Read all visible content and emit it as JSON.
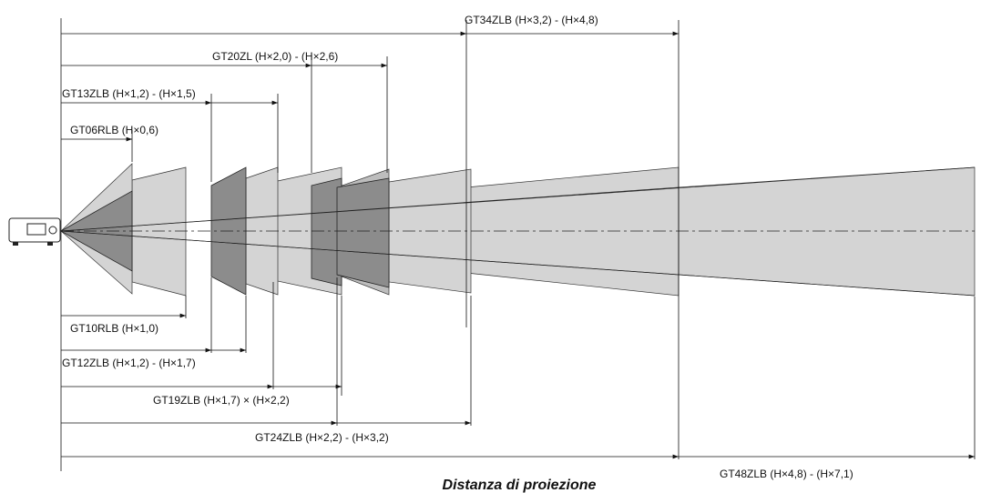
{
  "labels": [
    "GT34ZLB (H×3,2) - (H×4,8)",
    "GT20ZL (H×2,0) - (H×2,6)",
    "GT13ZLB (H×1,2) - (H×1,5)",
    "GT06RLB (H×0,6)",
    "GT10RLB (H×1,0)",
    "GT12ZLB (H×1,2) - (H×1,7)",
    "GT19ZLB (H×1,7) × (H×2,2)",
    "GT24ZLB (H×2,2) - (H×3,2)",
    "GT48ZLB (H×4,8) - (H×7,1)"
  ],
  "caption": "Distanza di proiezione"
}
